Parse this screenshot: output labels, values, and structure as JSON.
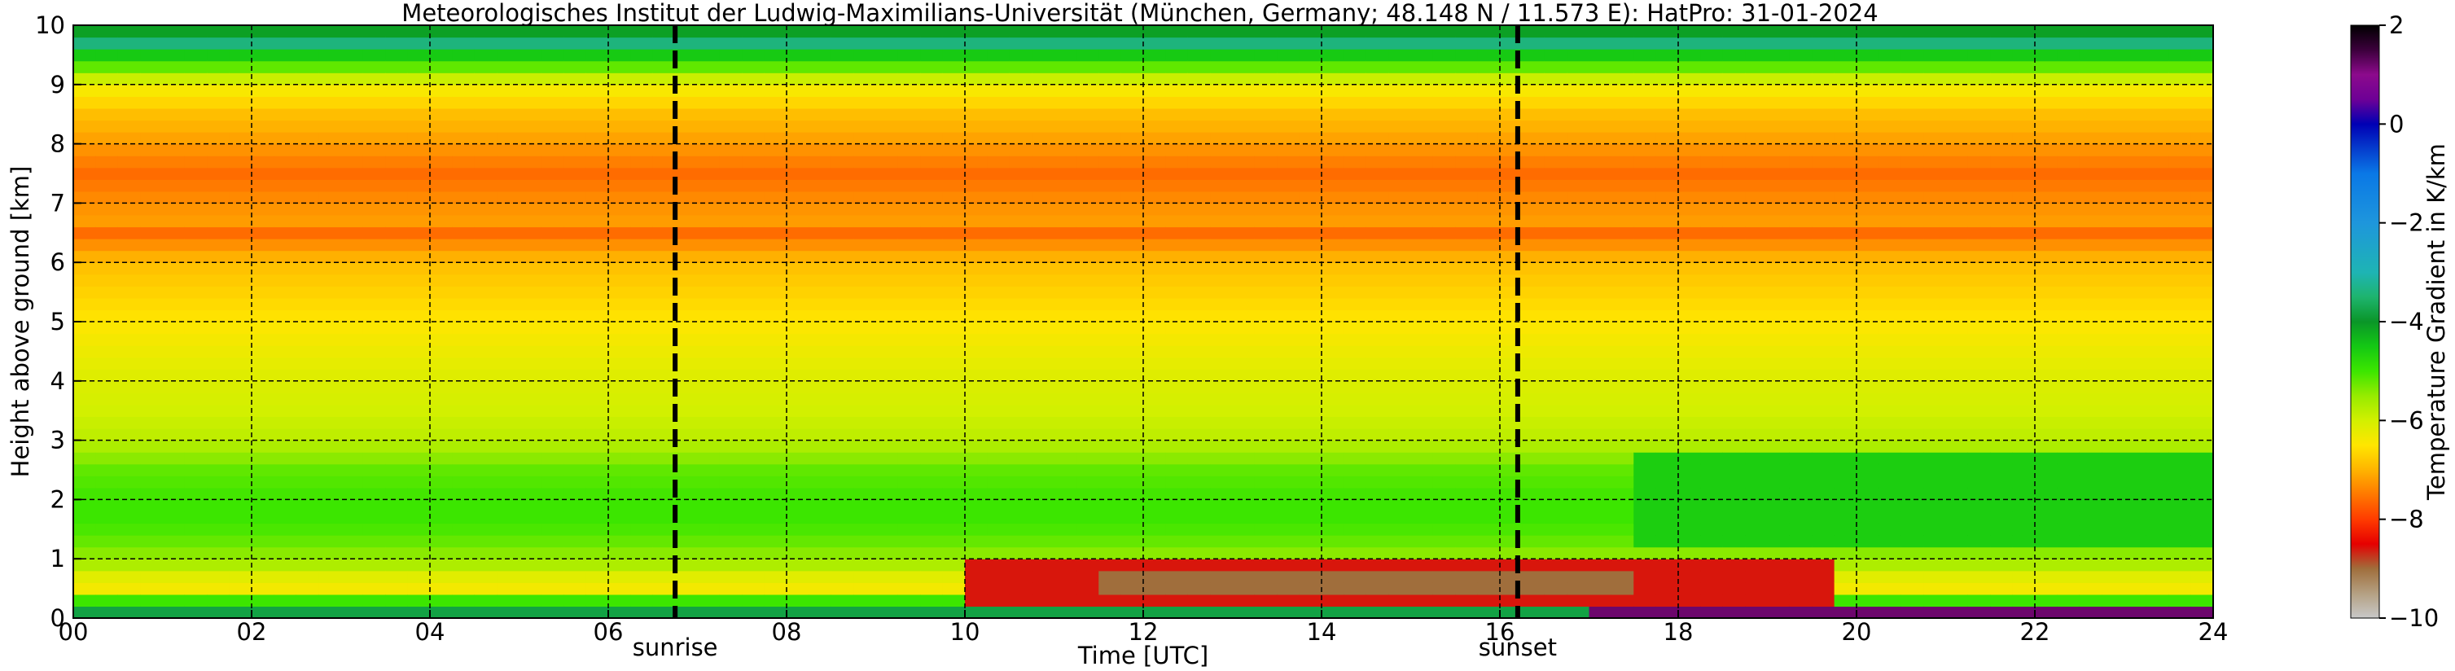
{
  "chart_data": {
    "type": "heatmap",
    "title": "Meteorologisches Institut der Ludwig-Maximilians-Universität (München, Germany; 48.148 N / 11.573 E):    HatPro: 31-01-2024",
    "xlabel": "Time [UTC]",
    "ylabel": "Height above ground [km]",
    "xlim": [
      0,
      24
    ],
    "ylim": [
      0,
      10
    ],
    "x_ticks": [
      0,
      2,
      4,
      6,
      8,
      10,
      12,
      14,
      16,
      18,
      20,
      22,
      24
    ],
    "x_tick_labels": [
      "00",
      "02",
      "04",
      "06",
      "08",
      "10",
      "12",
      "14",
      "16",
      "18",
      "20",
      "22",
      "24"
    ],
    "y_ticks": [
      0,
      1,
      2,
      3,
      4,
      5,
      6,
      7,
      8,
      9,
      10
    ],
    "y_tick_labels": [
      "0",
      "1",
      "2",
      "3",
      "4",
      "5",
      "6",
      "7",
      "8",
      "9",
      "10"
    ],
    "grid": true,
    "events": [
      {
        "label": "sunrise",
        "time": 6.75
      },
      {
        "label": "sunset",
        "time": 16.2
      }
    ],
    "colorbar": {
      "label": "Temperature Gradient in K/km",
      "min": -10,
      "max": 2,
      "ticks": [
        -10,
        -8,
        -6,
        -4,
        -2,
        0,
        2
      ],
      "tick_labels": [
        "−10",
        "−8",
        "−6",
        "−4",
        "−2",
        "0",
        "2"
      ],
      "colors": [
        {
          "value": -10.0,
          "color": "#c8c8c8"
        },
        {
          "value": -9.5,
          "color": "#b4a082"
        },
        {
          "value": -9.0,
          "color": "#a06e3c"
        },
        {
          "value": -8.5,
          "color": "#e60000"
        },
        {
          "value": -8.0,
          "color": "#ff3c00"
        },
        {
          "value": -7.5,
          "color": "#ff7800"
        },
        {
          "value": -7.0,
          "color": "#ffb400"
        },
        {
          "value": -6.5,
          "color": "#ffe600"
        },
        {
          "value": -6.0,
          "color": "#d2f000"
        },
        {
          "value": -5.5,
          "color": "#96eb00"
        },
        {
          "value": -5.0,
          "color": "#3ce600"
        },
        {
          "value": -4.5,
          "color": "#14c814"
        },
        {
          "value": -4.0,
          "color": "#0a9628"
        },
        {
          "value": -3.5,
          "color": "#1eb46e"
        },
        {
          "value": -3.0,
          "color": "#1eb4b4"
        },
        {
          "value": -2.0,
          "color": "#1e96dc"
        },
        {
          "value": -1.0,
          "color": "#0a78e6"
        },
        {
          "value": 0.0,
          "color": "#0000b4"
        },
        {
          "value": 0.5,
          "color": "#6e0096"
        },
        {
          "value": 1.0,
          "color": "#8c0a8c"
        },
        {
          "value": 1.5,
          "color": "#3c003c"
        },
        {
          "value": 2.0,
          "color": "#000000"
        }
      ]
    },
    "profile": [
      {
        "height": 0.0,
        "gradient": -3.0
      },
      {
        "height": 0.15,
        "gradient": -4.2
      },
      {
        "height": 0.3,
        "gradient": -5.0
      },
      {
        "height": 0.45,
        "gradient": -6.3
      },
      {
        "height": 0.6,
        "gradient": -6.5
      },
      {
        "height": 0.75,
        "gradient": -6.0
      },
      {
        "height": 0.9,
        "gradient": -5.7
      },
      {
        "height": 1.2,
        "gradient": -5.3
      },
      {
        "height": 1.6,
        "gradient": -5.0
      },
      {
        "height": 2.0,
        "gradient": -5.0
      },
      {
        "height": 2.5,
        "gradient": -5.2
      },
      {
        "height": 3.0,
        "gradient": -5.8
      },
      {
        "height": 3.5,
        "gradient": -6.0
      },
      {
        "height": 4.0,
        "gradient": -6.1
      },
      {
        "height": 4.5,
        "gradient": -6.3
      },
      {
        "height": 5.0,
        "gradient": -6.5
      },
      {
        "height": 5.5,
        "gradient": -6.7
      },
      {
        "height": 6.0,
        "gradient": -6.9
      },
      {
        "height": 6.3,
        "gradient": -7.3
      },
      {
        "height": 6.5,
        "gradient": -7.6
      },
      {
        "height": 6.7,
        "gradient": -7.2
      },
      {
        "height": 7.0,
        "gradient": -7.3
      },
      {
        "height": 7.5,
        "gradient": -7.6
      },
      {
        "height": 8.0,
        "gradient": -7.2
      },
      {
        "height": 8.5,
        "gradient": -6.9
      },
      {
        "height": 9.0,
        "gradient": -6.3
      },
      {
        "height": 9.3,
        "gradient": -5.2
      },
      {
        "height": 9.6,
        "gradient": -4.2
      },
      {
        "height": 9.8,
        "gradient": -4.0
      },
      {
        "height": 10.0,
        "gradient": -4.2
      }
    ],
    "features": [
      {
        "kind": "band",
        "t0": 10.0,
        "t1": 19.8,
        "h0": 0.3,
        "h1": 0.9,
        "gradient": -8.6
      },
      {
        "kind": "band",
        "t0": 11.5,
        "t1": 17.5,
        "h0": 0.35,
        "h1": 0.75,
        "gradient": -9.0
      },
      {
        "kind": "band",
        "t0": 17.5,
        "t1": 24.0,
        "h0": 1.3,
        "h1": 2.8,
        "gradient": -4.6
      },
      {
        "kind": "band",
        "t0": 17.0,
        "t1": 24.0,
        "h0": 0.0,
        "h1": 0.15,
        "gradient": 1.2
      },
      {
        "kind": "band",
        "t0": 0.0,
        "t1": 24.0,
        "h0": 9.65,
        "h1": 9.85,
        "gradient": -3.4
      }
    ]
  }
}
